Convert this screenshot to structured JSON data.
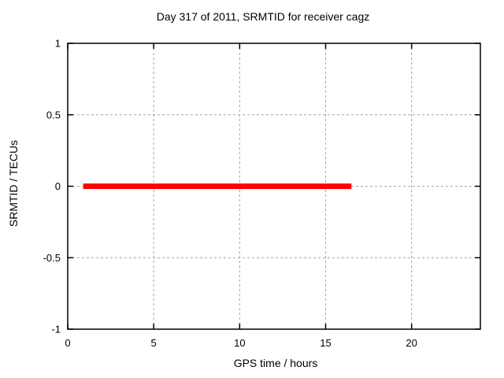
{
  "chart_data": {
    "type": "line",
    "title": "Day 317 of 2011, SRMTID for receiver cagz",
    "xlabel": "GPS time / hours",
    "ylabel": "SRMTID / TECUs",
    "xlim": [
      0,
      24
    ],
    "ylim": [
      -1,
      1
    ],
    "xticks": [
      0,
      5,
      10,
      15,
      20
    ],
    "yticks": [
      -1,
      -0.5,
      0,
      0.5,
      1
    ],
    "grid": true,
    "legend": "none",
    "series": [
      {
        "name": "SRMTID",
        "color": "#ff0000",
        "linewidth": 7,
        "x": [
          0.9,
          16.5
        ],
        "y": [
          0,
          0
        ]
      }
    ],
    "colors": {
      "background": "#ffffff",
      "axis": "#000000",
      "grid": "#a6a6a6",
      "text": "#000000"
    }
  }
}
